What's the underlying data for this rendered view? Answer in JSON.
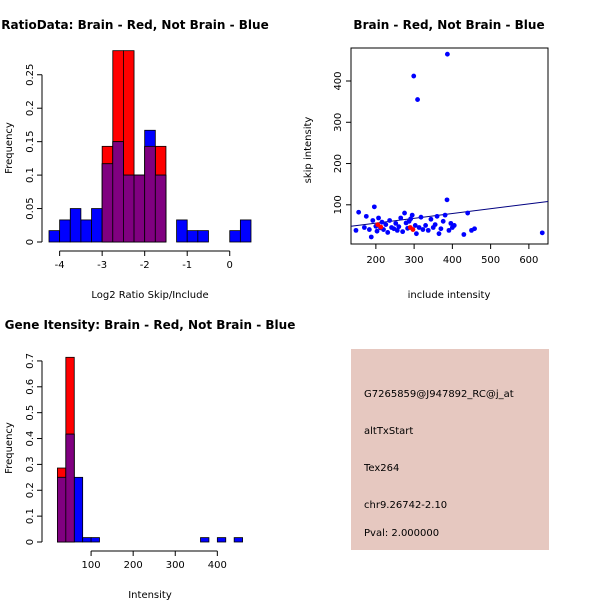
{
  "colors": {
    "brain": "#ff0000",
    "not_brain": "#0000ff",
    "overlap": "#800080",
    "info_bg": "#e6c8c0",
    "pval": "#cc0000",
    "fit_line": "#000080"
  },
  "chart_data": [
    {
      "id": "ratio-hist",
      "type": "bar",
      "title": "RatioData: Brain - Red, Not Brain - Blue",
      "xlabel": "Log2 Ratio Skip/Include",
      "ylabel": "Frequency",
      "xlim": [
        -4.25,
        0.5
      ],
      "ylim": [
        0,
        0.29
      ],
      "xticks": [
        -4,
        -3,
        -2,
        -1,
        0
      ],
      "yticks": [
        0,
        0.05,
        0.1,
        0.15,
        0.2,
        0.25
      ],
      "bin_width": 0.25,
      "series": [
        {
          "name": "Brain",
          "color": "red",
          "bins": [
            {
              "x": -3.0,
              "y": 0.143
            },
            {
              "x": -2.75,
              "y": 0.286
            },
            {
              "x": -2.5,
              "y": 0.286
            },
            {
              "x": -2.25,
              "y": 0.1
            },
            {
              "x": -2.0,
              "y": 0.143
            },
            {
              "x": -1.75,
              "y": 0.143
            }
          ]
        },
        {
          "name": "Not Brain",
          "color": "blue",
          "bins": [
            {
              "x": -4.25,
              "y": 0.017
            },
            {
              "x": -4.0,
              "y": 0.033
            },
            {
              "x": -3.75,
              "y": 0.05
            },
            {
              "x": -3.5,
              "y": 0.033
            },
            {
              "x": -3.25,
              "y": 0.05
            },
            {
              "x": -3.0,
              "y": 0.117
            },
            {
              "x": -2.75,
              "y": 0.15
            },
            {
              "x": -2.5,
              "y": 0.1
            },
            {
              "x": -2.25,
              "y": 0.1
            },
            {
              "x": -2.0,
              "y": 0.167
            },
            {
              "x": -1.75,
              "y": 0.1
            },
            {
              "x": -1.5,
              "y": 0.0
            },
            {
              "x": -1.25,
              "y": 0.033
            },
            {
              "x": -1.0,
              "y": 0.017
            },
            {
              "x": -0.75,
              "y": 0.017
            },
            {
              "x": -0.5,
              "y": 0.0
            },
            {
              "x": -0.25,
              "y": 0.0
            },
            {
              "x": 0.0,
              "y": 0.017
            },
            {
              "x": 0.25,
              "y": 0.033
            }
          ]
        }
      ]
    },
    {
      "id": "intensity-scatter",
      "type": "scatter",
      "title": "Brain - Red, Not Brain - Blue",
      "xlabel": "include intensity",
      "ylabel": "skip intensity",
      "xlim": [
        135,
        650
      ],
      "ylim": [
        5,
        480
      ],
      "xticks": [
        200,
        300,
        400,
        500,
        600
      ],
      "yticks": [
        100,
        200,
        300,
        400
      ],
      "fit_line": {
        "x1": 135,
        "y1": 48,
        "x2": 650,
        "y2": 108
      },
      "series": [
        {
          "name": "Not Brain",
          "color": "blue",
          "points": [
            [
              148,
              38
            ],
            [
              155,
              82
            ],
            [
              170,
              45
            ],
            [
              175,
              72
            ],
            [
              183,
              40
            ],
            [
              188,
              22
            ],
            [
              192,
              62
            ],
            [
              196,
              95
            ],
            [
              200,
              48
            ],
            [
              203,
              36
            ],
            [
              207,
              68
            ],
            [
              212,
              44
            ],
            [
              216,
              58
            ],
            [
              220,
              40
            ],
            [
              226,
              52
            ],
            [
              231,
              33
            ],
            [
              236,
              62
            ],
            [
              241,
              45
            ],
            [
              247,
              42
            ],
            [
              252,
              55
            ],
            [
              256,
              38
            ],
            [
              260,
              47
            ],
            [
              265,
              68
            ],
            [
              270,
              35
            ],
            [
              275,
              80
            ],
            [
              279,
              56
            ],
            [
              283,
              43
            ],
            [
              287,
              60
            ],
            [
              291,
              66
            ],
            [
              295,
              75
            ],
            [
              299,
              412
            ],
            [
              303,
              50
            ],
            [
              306,
              30
            ],
            [
              309,
              355
            ],
            [
              313,
              45
            ],
            [
              318,
              70
            ],
            [
              323,
              40
            ],
            [
              330,
              50
            ],
            [
              337,
              38
            ],
            [
              344,
              65
            ],
            [
              350,
              45
            ],
            [
              355,
              52
            ],
            [
              360,
              72
            ],
            [
              365,
              30
            ],
            [
              370,
              42
            ],
            [
              376,
              60
            ],
            [
              381,
              75
            ],
            [
              386,
              112
            ],
            [
              387,
              465
            ],
            [
              391,
              38
            ],
            [
              396,
              55
            ],
            [
              400,
              45
            ],
            [
              405,
              50
            ],
            [
              430,
              28
            ],
            [
              440,
              80
            ],
            [
              450,
              38
            ],
            [
              458,
              42
            ],
            [
              635,
              32
            ]
          ]
        },
        {
          "name": "Brain",
          "color": "red",
          "points": [
            [
              205,
              52
            ],
            [
              213,
              46
            ],
            [
              290,
              45
            ],
            [
              297,
              40
            ]
          ]
        }
      ]
    },
    {
      "id": "gene-hist",
      "type": "bar",
      "title": "Gene Itensity: Brain - Red, Not Brain - Blue",
      "xlabel": "Intensity",
      "ylabel": "Frequency",
      "xlim": [
        0,
        480
      ],
      "ylim": [
        0,
        0.75
      ],
      "xticks": [
        100,
        200,
        300,
        400
      ],
      "yticks": [
        0,
        0.1,
        0.2,
        0.3,
        0.4,
        0.5,
        0.6,
        0.7
      ],
      "bin_width": 20,
      "series": [
        {
          "name": "Brain",
          "color": "red",
          "bins": [
            {
              "x": 20,
              "y": 0.286
            },
            {
              "x": 40,
              "y": 0.714
            }
          ]
        },
        {
          "name": "Not Brain",
          "color": "blue",
          "bins": [
            {
              "x": 20,
              "y": 0.25
            },
            {
              "x": 40,
              "y": 0.417
            },
            {
              "x": 60,
              "y": 0.25
            },
            {
              "x": 80,
              "y": 0.017
            },
            {
              "x": 100,
              "y": 0.017
            },
            {
              "x": 360,
              "y": 0.017
            },
            {
              "x": 400,
              "y": 0.017
            },
            {
              "x": 440,
              "y": 0.017
            }
          ]
        }
      ]
    }
  ],
  "info_panel": {
    "probe_id": "G7265859@J947892_RC@j_at",
    "event_type": "altTxStart",
    "tissue": "Tex264",
    "location": "chr9.26742-2.10",
    "pval": "Pval: 2.000000"
  }
}
